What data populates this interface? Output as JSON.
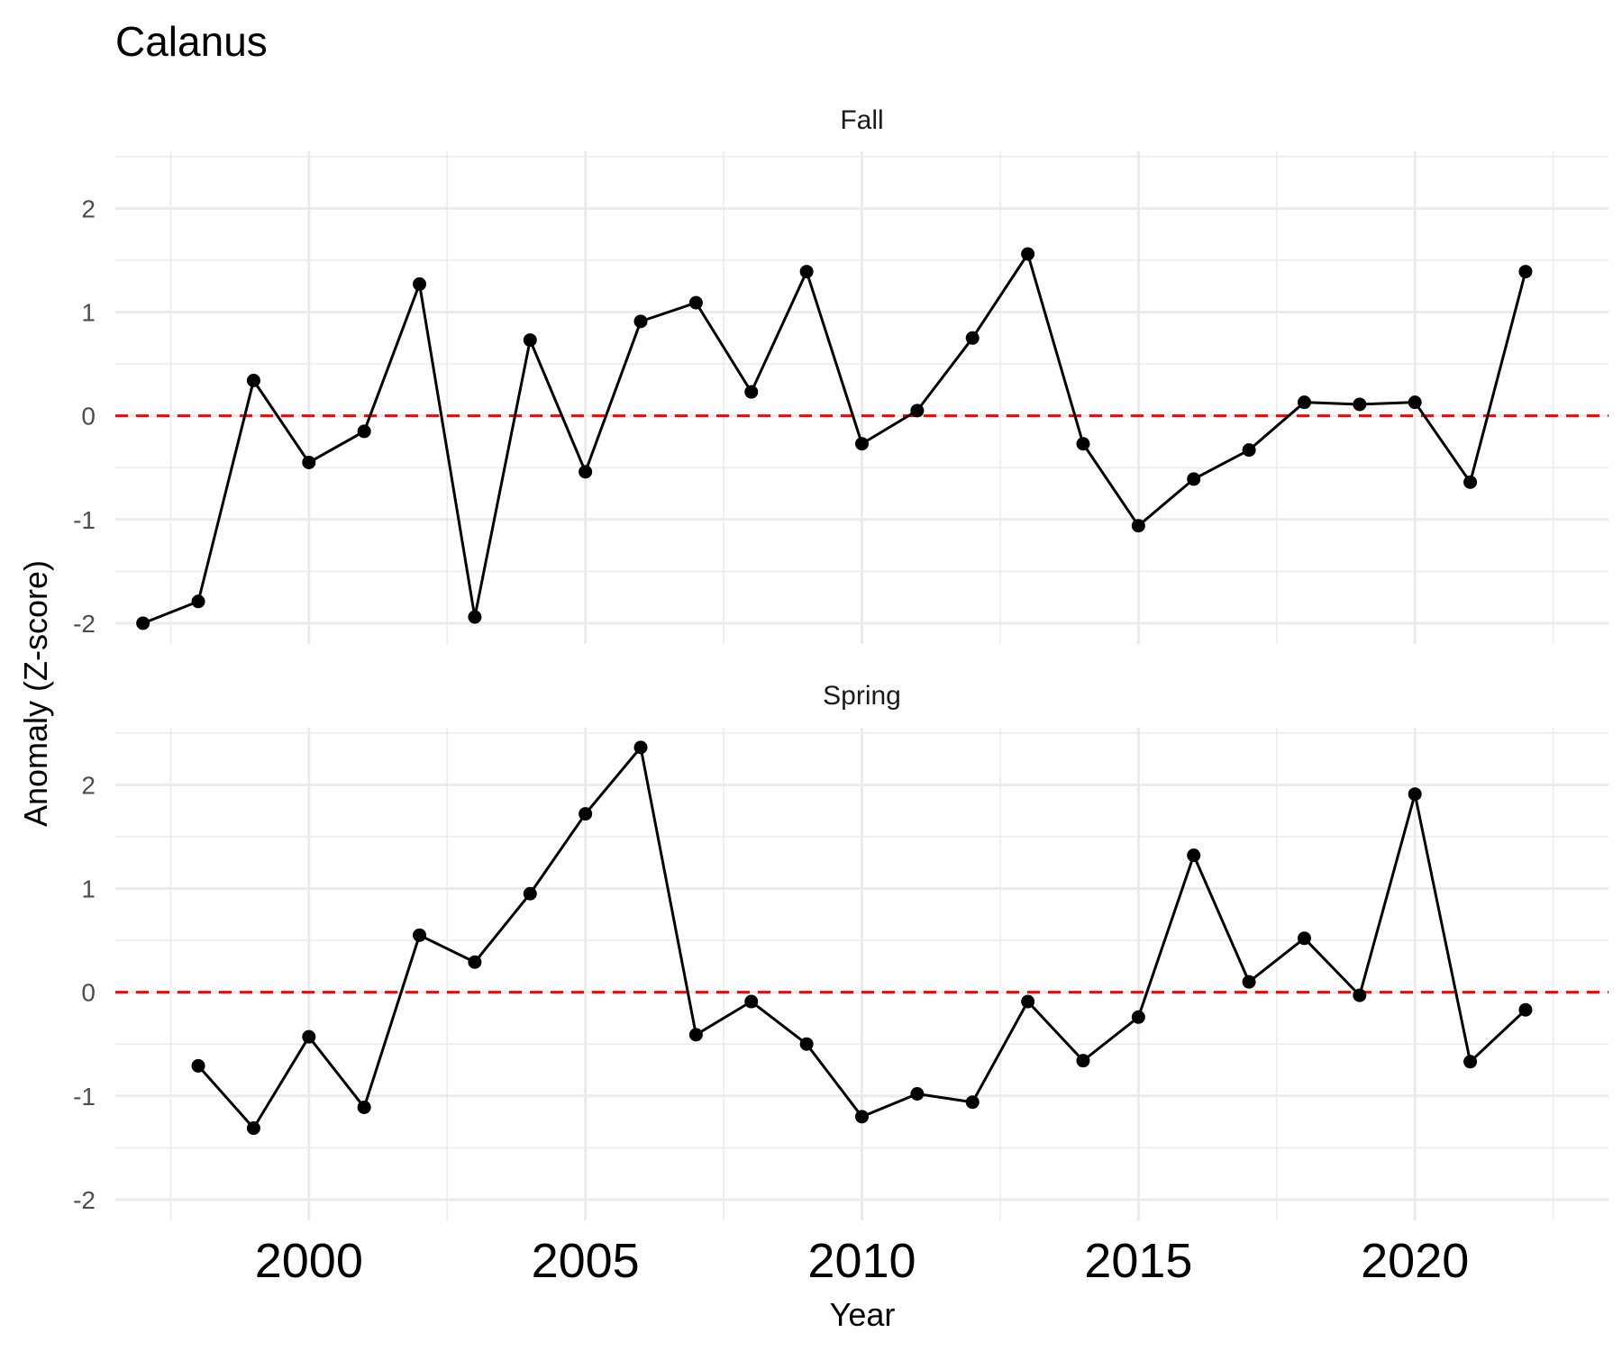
{
  "chart_data": {
    "type": "line",
    "title": "Calanus",
    "xlabel": "Year",
    "ylabel": "Anomaly (Z-score)",
    "x_ticks": [
      "2000",
      "2005",
      "2010",
      "2015",
      "2020"
    ],
    "y_ticks": [
      "-2",
      "-1",
      "0",
      "1",
      "2"
    ],
    "xlim": [
      1996.5,
      2023.5
    ],
    "ylim": [
      -2.2,
      2.55
    ],
    "reference_line": {
      "y": 0,
      "style": "dashed",
      "color": "#ff0000"
    },
    "line_color": "#000000",
    "grid": true,
    "panels": [
      {
        "name": "Fall",
        "x": [
          1997,
          1998,
          1999,
          2000,
          2001,
          2002,
          2003,
          2004,
          2005,
          2006,
          2007,
          2008,
          2009,
          2010,
          2011,
          2012,
          2013,
          2014,
          2015,
          2016,
          2017,
          2018,
          2019,
          2020,
          2021,
          2022
        ],
        "y": [
          -2.0,
          -1.79,
          0.34,
          -0.45,
          -0.15,
          1.27,
          -1.94,
          0.73,
          -0.54,
          0.91,
          1.09,
          0.23,
          1.39,
          -0.27,
          0.05,
          0.75,
          1.56,
          -0.27,
          -1.06,
          -0.61,
          -0.33,
          0.13,
          0.11,
          0.13,
          -0.64,
          1.39
        ]
      },
      {
        "name": "Spring",
        "x": [
          1998,
          1999,
          2000,
          2001,
          2002,
          2003,
          2004,
          2005,
          2006,
          2007,
          2008,
          2009,
          2010,
          2011,
          2012,
          2013,
          2014,
          2015,
          2016,
          2017,
          2018,
          2019,
          2020,
          2021,
          2022
        ],
        "y": [
          -0.71,
          -1.31,
          -0.43,
          -1.11,
          0.55,
          0.29,
          0.95,
          1.72,
          2.36,
          -0.41,
          -0.09,
          -0.5,
          -1.2,
          -0.98,
          -1.06,
          -0.09,
          -0.66,
          -0.24,
          1.32,
          0.1,
          0.52,
          -0.03,
          1.91,
          -0.67,
          -0.17
        ]
      }
    ]
  }
}
